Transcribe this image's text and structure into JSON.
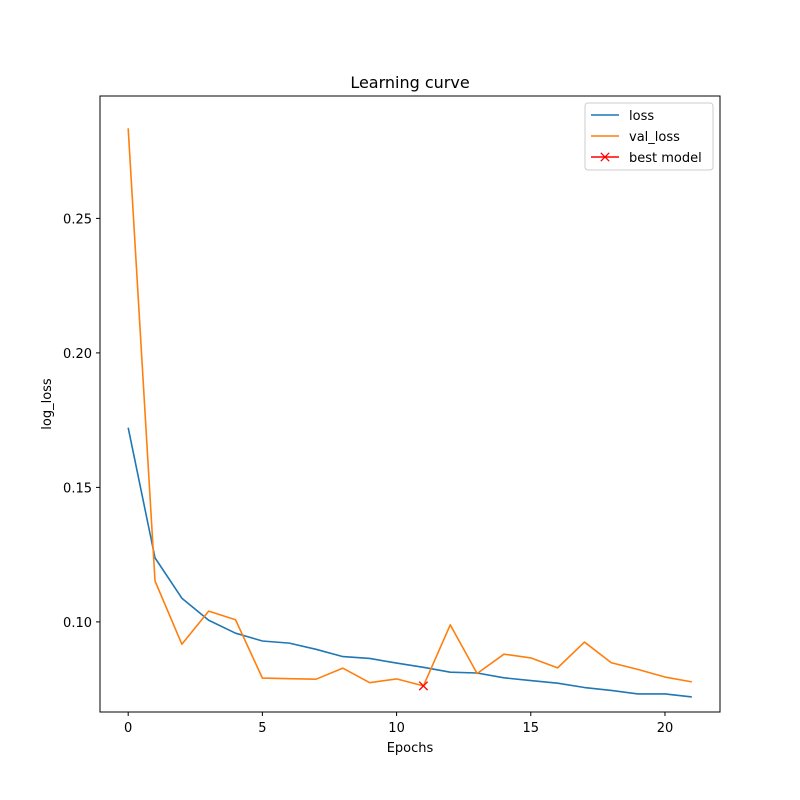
{
  "chart_data": {
    "type": "line",
    "title": "Learning curve",
    "xlabel": "Epochs",
    "ylabel": "log_loss",
    "xlim": [
      -1.05,
      22.05
    ],
    "ylim": [
      0.0665,
      0.2955
    ],
    "xticks": [
      0,
      5,
      10,
      15,
      20
    ],
    "xtick_labels": [
      "0",
      "5",
      "10",
      "15",
      "20"
    ],
    "yticks": [
      0.1,
      0.15,
      0.2,
      0.25
    ],
    "ytick_labels": [
      "0.10",
      "0.15",
      "0.20",
      "0.25"
    ],
    "grid": false,
    "legend_position": "top-right",
    "x": [
      0,
      1,
      2,
      3,
      4,
      5,
      6,
      7,
      8,
      9,
      10,
      11,
      12,
      13,
      14,
      15,
      16,
      17,
      18,
      19,
      20,
      21
    ],
    "series": [
      {
        "name": "loss",
        "color": "#1f77b4",
        "values": [
          0.1722,
          0.1238,
          0.1088,
          0.1006,
          0.0958,
          0.0929,
          0.0921,
          0.0898,
          0.0871,
          0.0864,
          0.0847,
          0.0831,
          0.0813,
          0.081,
          0.0792,
          0.0782,
          0.0772,
          0.0756,
          0.0745,
          0.0732,
          0.0732,
          0.0721
        ]
      },
      {
        "name": "val_loss",
        "color": "#ff7f0e",
        "values": [
          0.2835,
          0.1152,
          0.0917,
          0.104,
          0.1008,
          0.0791,
          0.0789,
          0.0787,
          0.0828,
          0.0774,
          0.0788,
          0.0762,
          0.0989,
          0.0808,
          0.088,
          0.0866,
          0.0829,
          0.0925,
          0.0848,
          0.0823,
          0.0795,
          0.0777
        ]
      }
    ],
    "markers": [
      {
        "name": "best model",
        "color": "#ff0000",
        "symbol": "x",
        "x": 11,
        "y": 0.0762
      }
    ]
  }
}
